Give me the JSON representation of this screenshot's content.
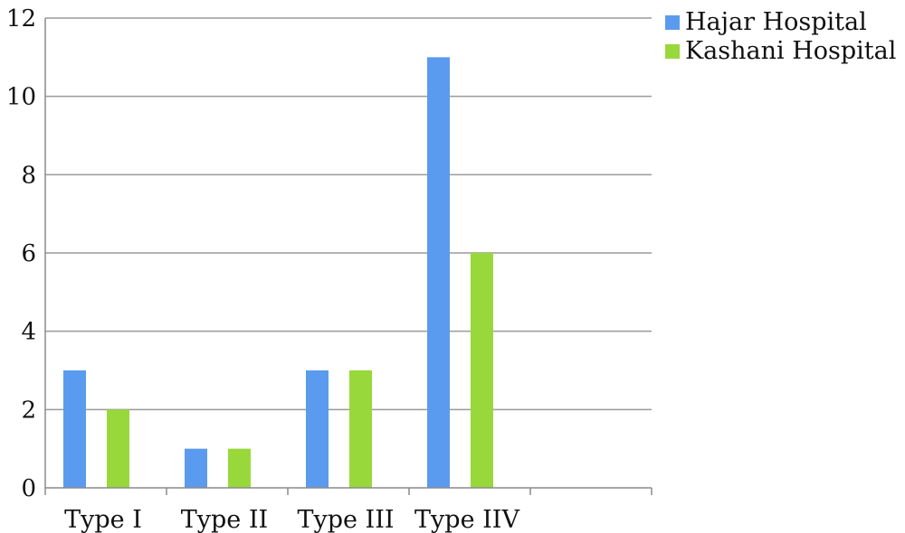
{
  "chart_data": {
    "type": "bar",
    "categories": [
      "Type I",
      "Type II",
      "Type III",
      "Type IIV",
      ""
    ],
    "series": [
      {
        "name": "Hajar Hospital",
        "color": "#5b9bef",
        "values": [
          3,
          1,
          3,
          11,
          null
        ]
      },
      {
        "name": "Kashani Hospital",
        "color": "#99d83a",
        "values": [
          2,
          1,
          3,
          6,
          null
        ]
      }
    ],
    "yticks": [
      "0",
      "2",
      "4",
      "6",
      "8",
      "10",
      "12"
    ],
    "ylim": [
      0,
      12
    ],
    "grid": true,
    "legend": "top-right"
  }
}
